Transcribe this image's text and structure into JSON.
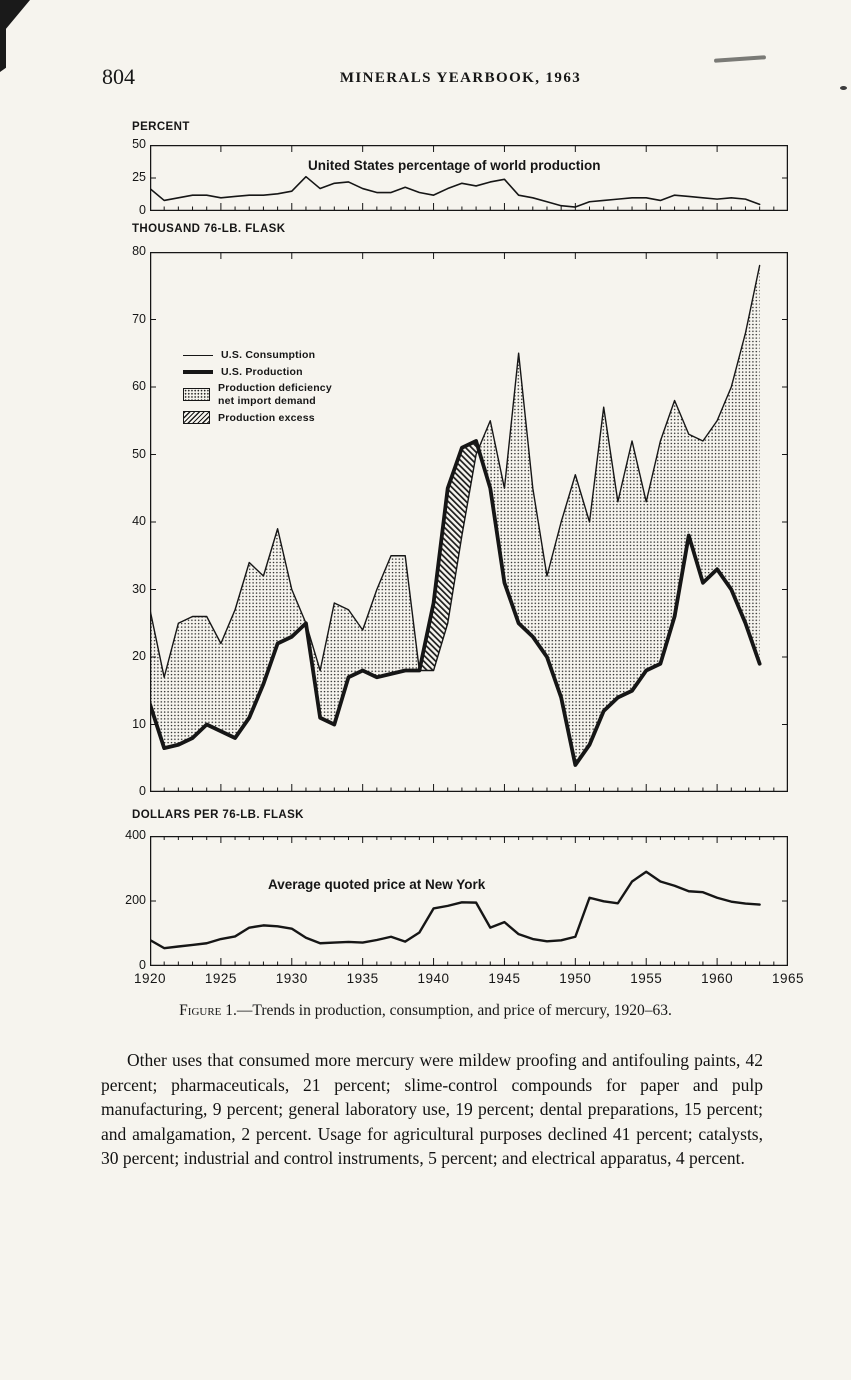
{
  "page": {
    "page_number": "804",
    "header_title": "MINERALS YEARBOOK, 1963",
    "caption_prefix": "Figure 1.",
    "caption_rest": "—Trends in production, consumption, and price of mercury, 1920–63.",
    "body_paragraph": "Other uses that consumed more mercury were mildew proofing and antifouling paints, 42 percent; pharmaceuticals, 21 percent; slime-control compounds for paper and pulp manufacturing, 9 percent; general laboratory use, 19 percent; dental preparations, 15 percent; and amalgamation, 2 percent.  Usage for agricultural purposes declined 41 percent; catalysts, 30 percent; industrial and control instruments, 5 percent; and electrical apparatus, 4 percent."
  },
  "x_axis": {
    "range": [
      1920,
      1965
    ],
    "labels": [
      "1920",
      "1925",
      "1930",
      "1935",
      "1940",
      "1945",
      "1950",
      "1955",
      "1960",
      "1965"
    ]
  },
  "chart_data": [
    {
      "type": "line",
      "title": "United States percentage of world production",
      "ylabel": "PERCENT",
      "ylim": [
        0,
        50
      ],
      "yticks": [
        0,
        25,
        50
      ],
      "x": [
        1920,
        1921,
        1922,
        1923,
        1924,
        1925,
        1926,
        1927,
        1928,
        1929,
        1930,
        1931,
        1932,
        1933,
        1934,
        1935,
        1936,
        1937,
        1938,
        1939,
        1940,
        1941,
        1942,
        1943,
        1944,
        1945,
        1946,
        1947,
        1948,
        1949,
        1950,
        1951,
        1952,
        1953,
        1954,
        1955,
        1956,
        1957,
        1958,
        1959,
        1960,
        1961,
        1962,
        1963
      ],
      "values": [
        17,
        8,
        10,
        12,
        12,
        10,
        11,
        12,
        12,
        13,
        15,
        26,
        17,
        21,
        22,
        17,
        14,
        14,
        18,
        14,
        12,
        17,
        21,
        19,
        22,
        24,
        12,
        10,
        7,
        4,
        3,
        7,
        8,
        9,
        10,
        10,
        8,
        12,
        11,
        10,
        9,
        10,
        9,
        5
      ]
    },
    {
      "type": "area",
      "title": "",
      "ylabel": "THOUSAND 76-LB. FLASK",
      "ylim": [
        0,
        80
      ],
      "yticks": [
        0,
        10,
        20,
        30,
        40,
        50,
        60,
        70,
        80
      ],
      "x": [
        1920,
        1921,
        1922,
        1923,
        1924,
        1925,
        1926,
        1927,
        1928,
        1929,
        1930,
        1931,
        1932,
        1933,
        1934,
        1935,
        1936,
        1937,
        1938,
        1939,
        1940,
        1941,
        1942,
        1943,
        1944,
        1945,
        1946,
        1947,
        1948,
        1949,
        1950,
        1951,
        1952,
        1953,
        1954,
        1955,
        1956,
        1957,
        1958,
        1959,
        1960,
        1961,
        1962,
        1963
      ],
      "series": [
        {
          "name": "U.S. Consumption",
          "values": [
            27,
            17,
            25,
            26,
            26,
            22,
            27,
            34,
            32,
            39,
            30,
            25,
            18,
            28,
            27,
            24,
            30,
            35,
            35,
            18,
            18,
            25,
            38,
            50,
            55,
            45,
            65,
            45,
            32,
            40,
            47,
            40,
            57,
            43,
            52,
            43,
            52,
            58,
            53,
            52,
            55,
            60,
            68,
            78
          ]
        },
        {
          "name": "U.S. Production",
          "values": [
            13,
            6.5,
            7,
            8,
            10,
            9,
            8,
            11,
            16,
            22,
            23,
            25,
            11,
            10,
            17,
            18,
            17,
            17.5,
            18,
            18,
            28,
            45,
            51,
            52,
            45,
            31,
            25,
            23,
            20,
            14,
            4,
            7,
            12,
            14,
            15,
            18,
            19,
            26,
            38,
            31,
            33,
            30,
            25,
            19
          ]
        }
      ],
      "legend": {
        "consumption": "U.S. Consumption",
        "production": "U.S. Production",
        "deficiency_line1": "Production deficiency",
        "deficiency_line2": "net import demand",
        "excess": "Production excess"
      }
    },
    {
      "type": "line",
      "title": "Average quoted price at New York",
      "ylabel": "DOLLARS PER 76-LB. FLASK",
      "ylim": [
        0,
        400
      ],
      "yticks": [
        0,
        200,
        400
      ],
      "x": [
        1920,
        1921,
        1922,
        1923,
        1924,
        1925,
        1926,
        1927,
        1928,
        1929,
        1930,
        1931,
        1932,
        1933,
        1934,
        1935,
        1936,
        1937,
        1938,
        1939,
        1940,
        1941,
        1942,
        1943,
        1944,
        1945,
        1946,
        1947,
        1948,
        1949,
        1950,
        1951,
        1952,
        1953,
        1954,
        1955,
        1956,
        1957,
        1958,
        1959,
        1960,
        1961,
        1962,
        1963
      ],
      "values": [
        80,
        55,
        60,
        65,
        70,
        83,
        91,
        118,
        125,
        122,
        115,
        87,
        70,
        72,
        74,
        72,
        80,
        90,
        75,
        103,
        177,
        185,
        196,
        195,
        118,
        135,
        98,
        83,
        76,
        79,
        90,
        210,
        199,
        193,
        260,
        290,
        260,
        247,
        230,
        227,
        210,
        198,
        192,
        189
      ]
    }
  ]
}
